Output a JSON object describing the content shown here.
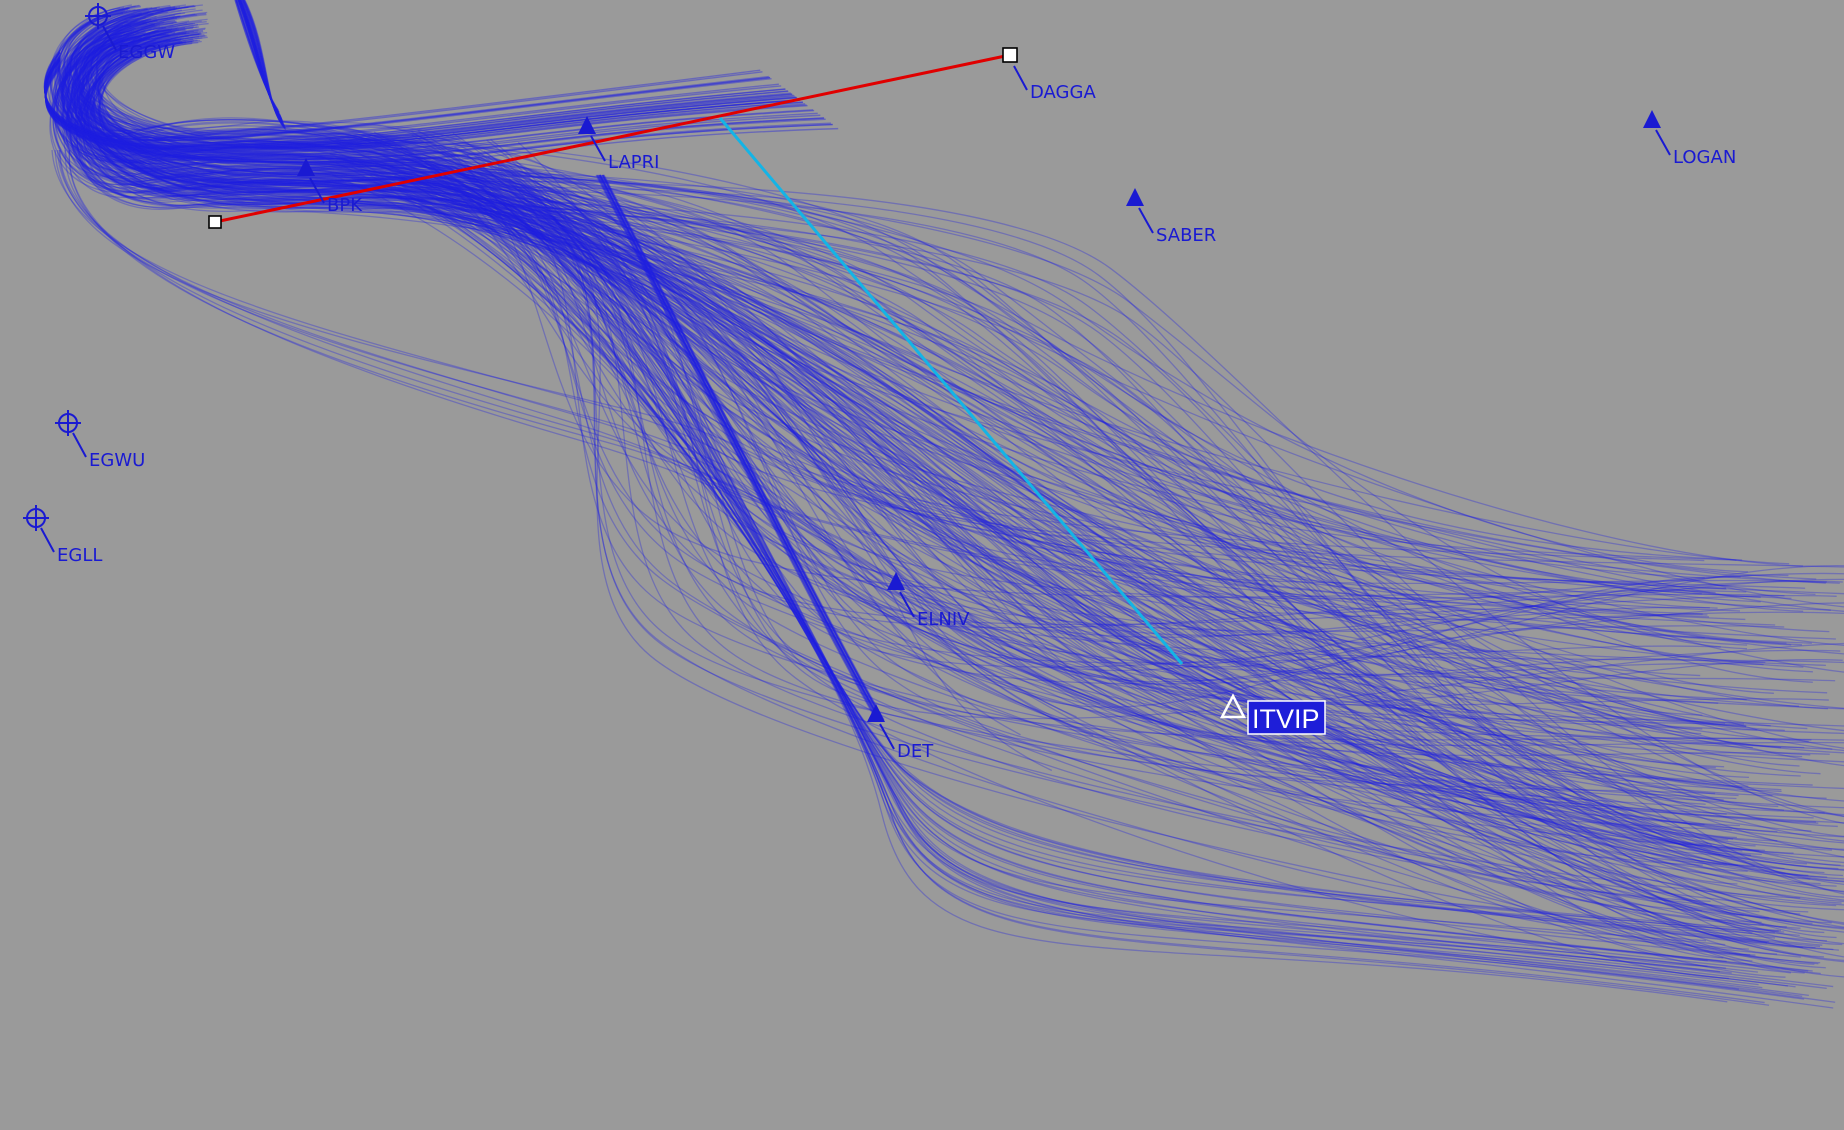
{
  "colors": {
    "background": "#9a9a9a",
    "track": "#1f1fe0",
    "waypoint": "#1a1ad2",
    "measure_line": "#e00000",
    "highlight_line": "#14b4e6",
    "selected_label_bg": "#1e1ed8",
    "selected_label_text": "#ffffff"
  },
  "airports": [
    {
      "id": "EGGW",
      "icon": "airport-reticle-icon"
    },
    {
      "id": "EGWU",
      "icon": "airport-reticle-icon"
    },
    {
      "id": "EGLL",
      "icon": "airport-reticle-icon"
    }
  ],
  "waypoints": [
    {
      "id": "DAGGA",
      "icon": "waypoint-handle-icon"
    },
    {
      "id": "LOGAN",
      "icon": "waypoint-triangle-icon"
    },
    {
      "id": "SABER",
      "icon": "waypoint-triangle-icon"
    },
    {
      "id": "BPK",
      "icon": "waypoint-triangle-icon"
    },
    {
      "id": "LAPRI",
      "icon": "waypoint-triangle-icon"
    },
    {
      "id": "ELNIV",
      "icon": "waypoint-triangle-icon"
    },
    {
      "id": "DET",
      "icon": "waypoint-triangle-icon"
    }
  ],
  "selected_waypoint": {
    "id": "ITVIP",
    "icon": "waypoint-triangle-outline-icon"
  }
}
